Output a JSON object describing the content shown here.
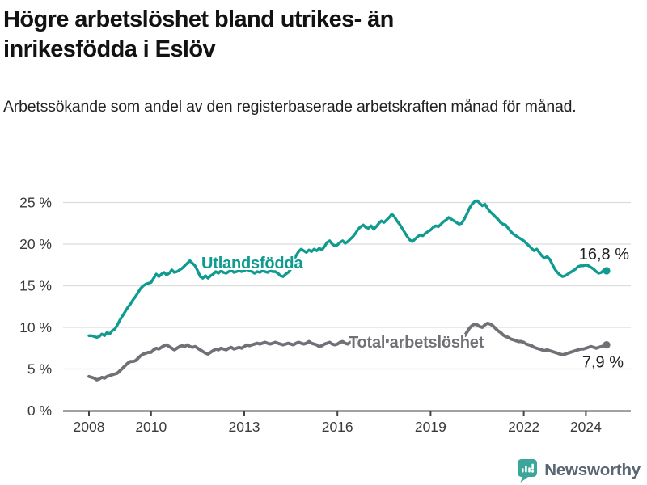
{
  "header": {
    "title_line1": "Högre arbetslöshet bland utrikes- än",
    "title_line2": "inrikesfödda i Eslöv",
    "subtitle": "Arbetssökande som andel av den registerbaserade arbetskraften månad för månad."
  },
  "footer": {
    "brand": "Newsworthy"
  },
  "colors": {
    "foreign_born_line": "#0f9b8f",
    "total_line": "#707176",
    "grid": "#dcdcdc",
    "axis": "#444444",
    "tick_label": "#3a3a3a",
    "annotation": "#222222",
    "logo_teal": "#3aa79a"
  },
  "chart_data": {
    "type": "line",
    "title": "Högre arbetslöshet bland utrikes- än inrikesfödda i Eslöv",
    "subtitle": "Arbetssökande som andel av den registerbaserade arbetskraften månad för månad.",
    "x_monthly_start": "2008-01",
    "x_monthly_end": "2024-09",
    "ylim": [
      0,
      26
    ],
    "grid": true,
    "y_ticks": [
      {
        "value": 0,
        "label": "0 %"
      },
      {
        "value": 5,
        "label": "5 %"
      },
      {
        "value": 10,
        "label": "10 %"
      },
      {
        "value": 15,
        "label": "15 %"
      },
      {
        "value": 20,
        "label": "20 %"
      },
      {
        "value": 25,
        "label": "25 %"
      }
    ],
    "x_ticks": [
      {
        "year": 2008,
        "label": "2008"
      },
      {
        "year": 2010,
        "label": "2010"
      },
      {
        "year": 2013,
        "label": "2013"
      },
      {
        "year": 2016,
        "label": "2016"
      },
      {
        "year": 2019,
        "label": "2019"
      },
      {
        "year": 2022,
        "label": "2022"
      },
      {
        "year": 2024,
        "label": "2024"
      }
    ],
    "series": [
      {
        "name": "Utlandsfödda",
        "color": "#0f9b8f",
        "end_label": "16,8 %",
        "last_value": 16.8,
        "values": [
          9.0,
          9.0,
          8.9,
          8.8,
          8.9,
          9.2,
          9.0,
          9.4,
          9.2,
          9.6,
          9.8,
          10.3,
          10.9,
          11.4,
          11.9,
          12.4,
          12.8,
          13.3,
          13.7,
          14.2,
          14.7,
          15.0,
          15.2,
          15.3,
          15.4,
          15.9,
          16.4,
          16.1,
          16.4,
          16.6,
          16.3,
          16.5,
          16.9,
          16.6,
          16.7,
          16.9,
          17.1,
          17.4,
          17.7,
          18.0,
          17.7,
          17.4,
          16.8,
          16.1,
          15.9,
          16.2,
          15.9,
          16.2,
          16.4,
          16.7,
          16.5,
          16.8,
          16.6,
          16.5,
          16.7,
          16.9,
          16.6,
          16.7,
          16.8,
          16.7,
          16.8,
          17.0,
          16.8,
          16.7,
          16.5,
          16.7,
          16.6,
          16.8,
          16.7,
          16.6,
          16.8,
          16.7,
          16.7,
          16.5,
          16.2,
          16.1,
          16.4,
          16.6,
          17.0,
          17.8,
          18.6,
          19.1,
          19.4,
          19.2,
          19.0,
          19.3,
          19.1,
          19.4,
          19.2,
          19.5,
          19.3,
          19.7,
          20.2,
          20.4,
          20.0,
          19.8,
          19.9,
          20.2,
          20.4,
          20.1,
          20.3,
          20.6,
          20.9,
          21.3,
          21.8,
          22.1,
          22.3,
          22.0,
          21.9,
          22.2,
          21.8,
          22.1,
          22.5,
          22.8,
          22.6,
          22.9,
          23.2,
          23.6,
          23.3,
          22.8,
          22.4,
          21.9,
          21.4,
          20.9,
          20.5,
          20.3,
          20.6,
          20.9,
          21.1,
          21.0,
          21.3,
          21.5,
          21.7,
          22.0,
          22.2,
          22.1,
          22.4,
          22.7,
          22.9,
          23.2,
          23.0,
          22.8,
          22.6,
          22.4,
          22.5,
          23.0,
          23.6,
          24.3,
          24.8,
          25.1,
          25.2,
          24.9,
          24.6,
          24.8,
          24.3,
          23.9,
          23.6,
          23.3,
          23.0,
          22.6,
          22.4,
          22.3,
          21.9,
          21.5,
          21.2,
          21.0,
          20.8,
          20.6,
          20.4,
          20.1,
          19.8,
          19.5,
          19.2,
          19.4,
          19.0,
          18.6,
          18.3,
          18.5,
          18.2,
          17.6,
          17.0,
          16.6,
          16.3,
          16.1,
          16.2,
          16.4,
          16.6,
          16.8,
          17.0,
          17.3,
          17.4,
          17.4,
          17.5,
          17.4,
          17.2,
          17.0,
          16.7,
          16.5,
          16.6,
          16.9,
          16.8
        ]
      },
      {
        "name": "Total arbetslöshet",
        "color": "#707176",
        "end_label": "7,9 %",
        "last_value": 7.9,
        "values": [
          4.1,
          4.0,
          3.9,
          3.7,
          3.8,
          4.0,
          3.9,
          4.1,
          4.2,
          4.3,
          4.4,
          4.5,
          4.8,
          5.1,
          5.4,
          5.7,
          5.9,
          5.9,
          6.0,
          6.3,
          6.6,
          6.8,
          6.9,
          7.0,
          7.0,
          7.3,
          7.5,
          7.4,
          7.6,
          7.8,
          7.9,
          7.7,
          7.5,
          7.3,
          7.5,
          7.7,
          7.8,
          7.7,
          7.9,
          7.7,
          7.6,
          7.7,
          7.5,
          7.3,
          7.1,
          6.9,
          6.8,
          7.0,
          7.2,
          7.4,
          7.3,
          7.5,
          7.4,
          7.3,
          7.5,
          7.6,
          7.4,
          7.5,
          7.6,
          7.5,
          7.7,
          7.9,
          7.8,
          7.9,
          8.0,
          8.1,
          8.0,
          8.1,
          8.2,
          8.1,
          8.0,
          8.1,
          8.2,
          8.1,
          8.0,
          7.9,
          8.0,
          8.1,
          8.0,
          7.9,
          8.1,
          8.2,
          8.1,
          8.0,
          8.1,
          8.3,
          8.1,
          8.0,
          7.9,
          7.7,
          7.8,
          8.0,
          8.1,
          8.2,
          8.0,
          7.9,
          8.0,
          8.2,
          8.3,
          8.1,
          8.0,
          8.2,
          8.1,
          8.3,
          8.4,
          8.2,
          8.1,
          8.2,
          8.1,
          8.3,
          8.2,
          8.0,
          8.1,
          8.3,
          8.2,
          8.4,
          8.3,
          8.2,
          8.0,
          8.1,
          8.0,
          7.9,
          7.8,
          7.7,
          7.8,
          7.9,
          7.8,
          7.7,
          7.9,
          7.8,
          8.0,
          8.1,
          8.0,
          8.2,
          8.1,
          8.0,
          8.2,
          8.3,
          8.2,
          8.4,
          8.3,
          8.2,
          8.4,
          8.5,
          8.6,
          8.9,
          9.4,
          9.9,
          10.2,
          10.4,
          10.3,
          10.1,
          10.0,
          10.3,
          10.5,
          10.4,
          10.2,
          9.9,
          9.6,
          9.4,
          9.1,
          8.9,
          8.8,
          8.6,
          8.5,
          8.4,
          8.3,
          8.3,
          8.2,
          8.0,
          7.9,
          7.8,
          7.6,
          7.5,
          7.4,
          7.3,
          7.2,
          7.3,
          7.2,
          7.1,
          7.0,
          6.9,
          6.8,
          6.7,
          6.8,
          6.9,
          7.0,
          7.1,
          7.2,
          7.3,
          7.4,
          7.4,
          7.5,
          7.6,
          7.7,
          7.6,
          7.5,
          7.6,
          7.7,
          7.8,
          7.9
        ]
      }
    ]
  }
}
